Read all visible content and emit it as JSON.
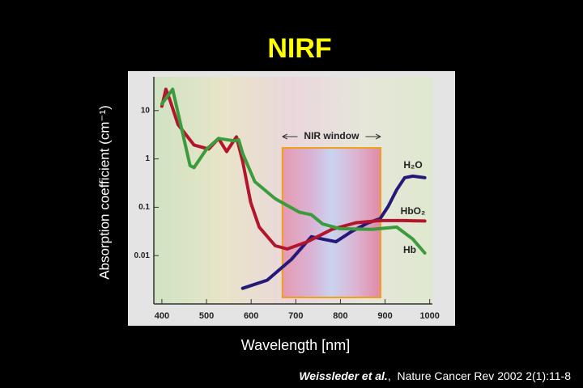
{
  "chart_data": {
    "type": "line",
    "title": "NIRF",
    "x_label": "Wavelength [nm]",
    "y_label": "Absorption coefficient (cm⁻¹)",
    "log_y": true,
    "xlim": [
      382,
      1006
    ],
    "xticks": [
      400,
      500,
      600,
      700,
      800,
      900,
      1000
    ],
    "ylim": [
      0.001,
      50
    ],
    "yticks": [
      10,
      1,
      0.1,
      0.01
    ],
    "nir_window": {
      "label": "NIR window",
      "range": [
        670,
        890
      ]
    },
    "series": [
      {
        "name": "H₂O",
        "color": "#24197a",
        "x": [
          581,
          636,
          690,
          735,
          763,
          790,
          826,
          862,
          889,
          907,
          926,
          944,
          962,
          989
        ],
        "values": [
          0.0021,
          0.0031,
          0.0083,
          0.0246,
          0.0217,
          0.0193,
          0.0319,
          0.0476,
          0.058,
          0.104,
          0.23,
          0.41,
          0.44,
          0.41
        ]
      },
      {
        "name": "HbO₂",
        "color": "#b3162c",
        "x": [
          400,
          409,
          418,
          436,
          472,
          505,
          527,
          545,
          567,
          581,
          599,
          618,
          654,
          681,
          726,
          781,
          835,
          889,
          944,
          989
        ],
        "values": [
          12.3,
          27.6,
          16.6,
          5.15,
          1.94,
          1.6,
          2.65,
          1.42,
          2.86,
          0.89,
          0.126,
          0.039,
          0.016,
          0.0137,
          0.0193,
          0.035,
          0.048,
          0.053,
          0.053,
          0.052
        ]
      },
      {
        "name": "Hb",
        "color": "#3c9b3c",
        "x": [
          400,
          424,
          463,
          472,
          500,
          527,
          563,
          572,
          581,
          608,
          654,
          708,
          735,
          760,
          799,
          871,
          926,
          962,
          989
        ],
        "values": [
          13.7,
          27.6,
          0.73,
          0.66,
          1.6,
          2.65,
          2.36,
          2.5,
          1.3,
          0.34,
          0.15,
          0.079,
          0.07,
          0.045,
          0.036,
          0.035,
          0.039,
          0.022,
          0.0113
        ]
      }
    ],
    "citation": {
      "author": "Weissleder et al.",
      "text": ",  Nature Cancer Rev 2002 2(1):11-8"
    }
  }
}
